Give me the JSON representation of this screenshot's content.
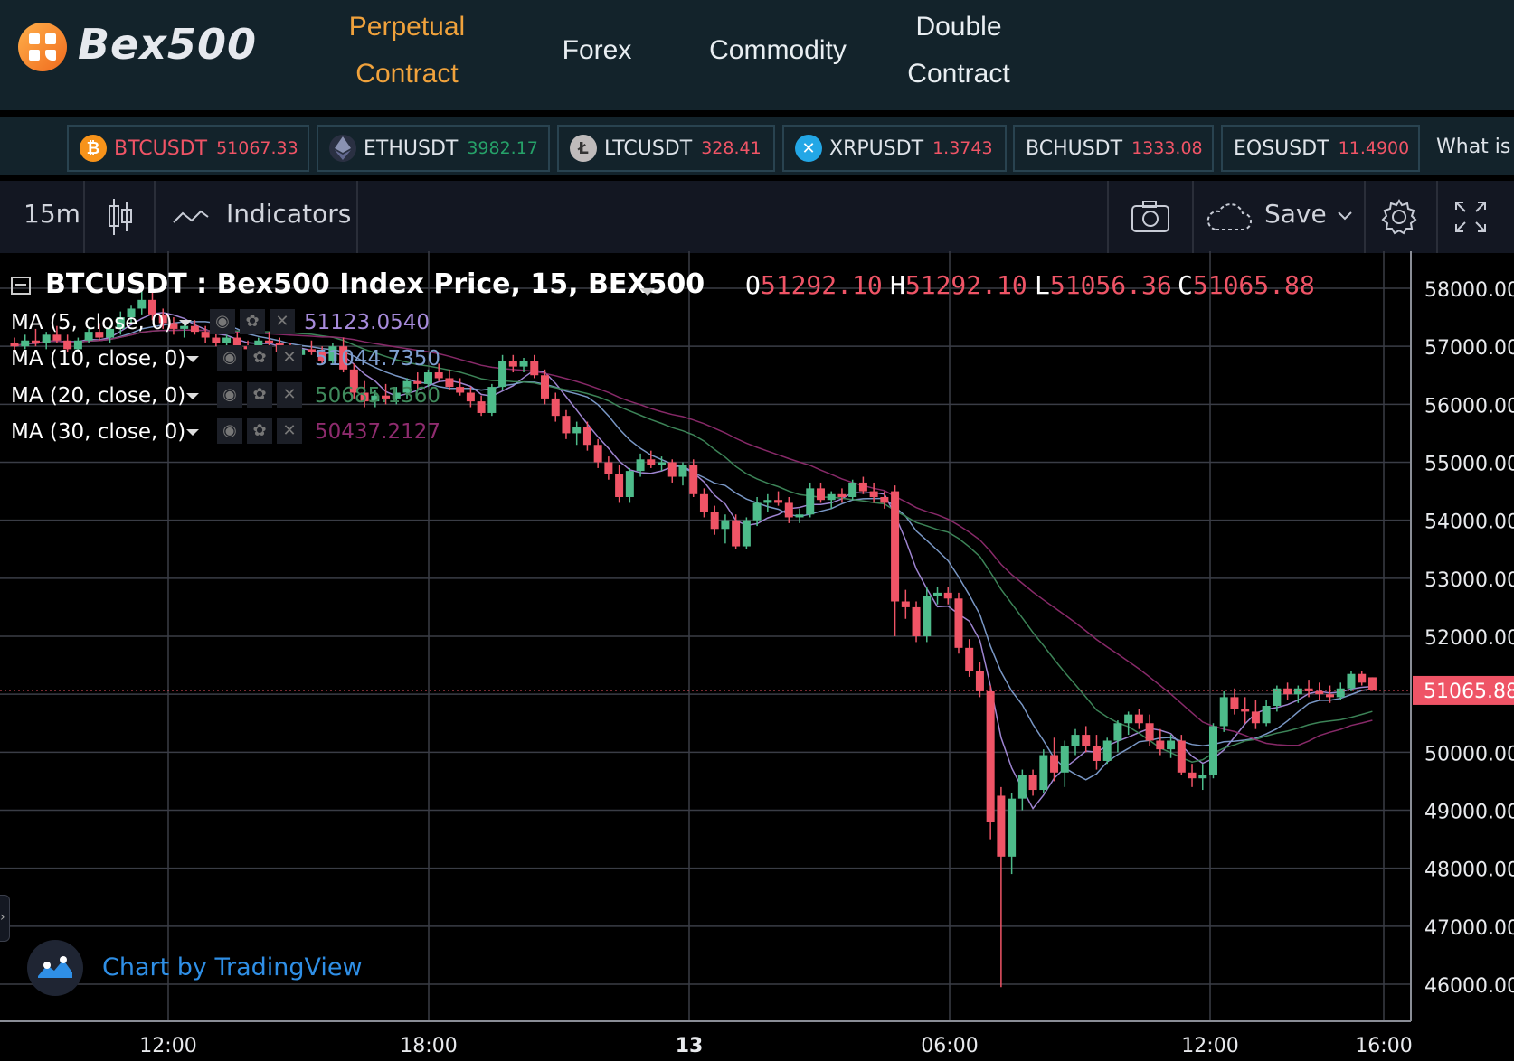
{
  "brand": {
    "name": "Bex500"
  },
  "nav": {
    "items": [
      {
        "line1": "Perpetual",
        "line2": "Contract",
        "active": true
      },
      {
        "line1": "Forex",
        "line2": "",
        "active": false
      },
      {
        "line1": "Commodity",
        "line2": "",
        "active": false
      },
      {
        "line1": "Double",
        "line2": "Contract",
        "active": false
      }
    ]
  },
  "tickers": [
    {
      "symbol": "BTCUSDT",
      "price": "51067.33",
      "icon": "bitcoin-icon",
      "price_color": "#ef5466"
    },
    {
      "symbol": "ETHUSDT",
      "price": "3982.17",
      "icon": "ethereum-icon",
      "price_color": "#26a269"
    },
    {
      "symbol": "LTCUSDT",
      "price": "328.41",
      "icon": "litecoin-icon",
      "price_color": "#ef5466"
    },
    {
      "symbol": "XRPUSDT",
      "price": "1.3743",
      "icon": "ripple-icon",
      "price_color": "#ef5466"
    },
    {
      "symbol": "BCHUSDT",
      "price": "1333.08",
      "icon": "",
      "price_color": "#ef5466"
    },
    {
      "symbol": "EOSUSDT",
      "price": "11.4900",
      "icon": "",
      "price_color": "#ef5466"
    }
  ],
  "ticker_more": "What is",
  "toolbar": {
    "interval": "15m",
    "indicators_label": "Indicators",
    "save_label": "Save"
  },
  "chart_data": {
    "type": "candlestick",
    "title": "BTCUSDT : Bex500 Index Price, 15, BEX500",
    "ohlc": {
      "o": "51292.10",
      "h": "51292.10",
      "l": "51056.36",
      "c": "51065.88"
    },
    "ohlc_labels": [
      "O",
      "H",
      "L",
      "C"
    ],
    "last_price": "51065.88",
    "indicators": [
      {
        "label": "MA (5, close, 0)",
        "value": "51123.0540",
        "color": "#a78bdb"
      },
      {
        "label": "MA (10, close, 0)",
        "value": "51044.7350",
        "color": "#7f9fd0"
      },
      {
        "label": "MA (20, close, 0)",
        "value": "50685.1360",
        "color": "#3f8a5c"
      },
      {
        "label": "MA (30, close, 0)",
        "value": "50437.2127",
        "color": "#8e2b6e"
      }
    ],
    "y_ticks": [
      "58000.00",
      "57000.00",
      "56000.00",
      "55000.00",
      "54000.00",
      "53000.00",
      "52000.00",
      "51000.00",
      "50000.00",
      "49000.00",
      "48000.00",
      "47000.00",
      "46000.00"
    ],
    "x_ticks": [
      "12:00",
      "18:00",
      "13",
      "06:00",
      "12:00",
      "16:00"
    ],
    "ylim": [
      45700,
      58300
    ],
    "candles": [
      {
        "o": 57050,
        "h": 57150,
        "l": 56900,
        "c": 57000
      },
      {
        "o": 57000,
        "h": 57200,
        "l": 56950,
        "c": 57100
      },
      {
        "o": 57100,
        "h": 57300,
        "l": 57000,
        "c": 57050
      },
      {
        "o": 57050,
        "h": 57250,
        "l": 56950,
        "c": 57200
      },
      {
        "o": 57200,
        "h": 57350,
        "l": 57050,
        "c": 57100
      },
      {
        "o": 57100,
        "h": 57200,
        "l": 56900,
        "c": 56950
      },
      {
        "o": 56950,
        "h": 57150,
        "l": 56900,
        "c": 57100
      },
      {
        "o": 57100,
        "h": 57300,
        "l": 57050,
        "c": 57250
      },
      {
        "o": 57250,
        "h": 57400,
        "l": 57100,
        "c": 57150
      },
      {
        "o": 57150,
        "h": 57350,
        "l": 57050,
        "c": 57300
      },
      {
        "o": 57300,
        "h": 57600,
        "l": 57200,
        "c": 57500
      },
      {
        "o": 57500,
        "h": 57700,
        "l": 57400,
        "c": 57650
      },
      {
        "o": 57650,
        "h": 57950,
        "l": 57550,
        "c": 57800
      },
      {
        "o": 57800,
        "h": 57950,
        "l": 57450,
        "c": 57550
      },
      {
        "o": 57550,
        "h": 57650,
        "l": 57300,
        "c": 57400
      },
      {
        "o": 57400,
        "h": 57500,
        "l": 57200,
        "c": 57300
      },
      {
        "o": 57300,
        "h": 57450,
        "l": 57150,
        "c": 57350
      },
      {
        "o": 57350,
        "h": 57450,
        "l": 57200,
        "c": 57250
      },
      {
        "o": 57250,
        "h": 57350,
        "l": 57050,
        "c": 57150
      },
      {
        "o": 57150,
        "h": 57300,
        "l": 57000,
        "c": 57050
      },
      {
        "o": 57050,
        "h": 57200,
        "l": 56950,
        "c": 57150
      },
      {
        "o": 57150,
        "h": 57250,
        "l": 56950,
        "c": 57000
      },
      {
        "o": 57000,
        "h": 57100,
        "l": 56850,
        "c": 56950
      },
      {
        "o": 56950,
        "h": 57150,
        "l": 56900,
        "c": 57100
      },
      {
        "o": 57100,
        "h": 57250,
        "l": 57000,
        "c": 57050
      },
      {
        "o": 57050,
        "h": 57150,
        "l": 56850,
        "c": 56900
      },
      {
        "o": 56900,
        "h": 57050,
        "l": 56800,
        "c": 56850
      },
      {
        "o": 56850,
        "h": 57000,
        "l": 56750,
        "c": 56950
      },
      {
        "o": 56950,
        "h": 57100,
        "l": 56850,
        "c": 56900
      },
      {
        "o": 56900,
        "h": 57000,
        "l": 56700,
        "c": 56750
      },
      {
        "o": 56750,
        "h": 57050,
        "l": 56700,
        "c": 57000
      },
      {
        "o": 57000,
        "h": 57150,
        "l": 56550,
        "c": 56600
      },
      {
        "o": 56600,
        "h": 56700,
        "l": 56100,
        "c": 56200
      },
      {
        "o": 56200,
        "h": 56400,
        "l": 55950,
        "c": 56050
      },
      {
        "o": 56050,
        "h": 56250,
        "l": 55950,
        "c": 56150
      },
      {
        "o": 56150,
        "h": 56350,
        "l": 56000,
        "c": 56100
      },
      {
        "o": 56100,
        "h": 56300,
        "l": 56000,
        "c": 56200
      },
      {
        "o": 56200,
        "h": 56450,
        "l": 56100,
        "c": 56400
      },
      {
        "o": 56400,
        "h": 56550,
        "l": 56250,
        "c": 56350
      },
      {
        "o": 56350,
        "h": 56600,
        "l": 56300,
        "c": 56550
      },
      {
        "o": 56550,
        "h": 56700,
        "l": 56400,
        "c": 56450
      },
      {
        "o": 56450,
        "h": 56600,
        "l": 56250,
        "c": 56300
      },
      {
        "o": 56300,
        "h": 56450,
        "l": 56150,
        "c": 56200
      },
      {
        "o": 56200,
        "h": 56300,
        "l": 55950,
        "c": 56050
      },
      {
        "o": 56050,
        "h": 56150,
        "l": 55800,
        "c": 55850
      },
      {
        "o": 55850,
        "h": 56350,
        "l": 55800,
        "c": 56300
      },
      {
        "o": 56300,
        "h": 56850,
        "l": 56250,
        "c": 56750
      },
      {
        "o": 56750,
        "h": 56850,
        "l": 56550,
        "c": 56650
      },
      {
        "o": 56650,
        "h": 56800,
        "l": 56550,
        "c": 56750
      },
      {
        "o": 56750,
        "h": 56850,
        "l": 56450,
        "c": 56500
      },
      {
        "o": 56500,
        "h": 56600,
        "l": 56000,
        "c": 56100
      },
      {
        "o": 56100,
        "h": 56200,
        "l": 55700,
        "c": 55800
      },
      {
        "o": 55800,
        "h": 55900,
        "l": 55400,
        "c": 55500
      },
      {
        "o": 55500,
        "h": 55700,
        "l": 55300,
        "c": 55600
      },
      {
        "o": 55600,
        "h": 55700,
        "l": 55200,
        "c": 55300
      },
      {
        "o": 55300,
        "h": 55400,
        "l": 54900,
        "c": 55000
      },
      {
        "o": 55000,
        "h": 55100,
        "l": 54700,
        "c": 54800
      },
      {
        "o": 54800,
        "h": 54950,
        "l": 54300,
        "c": 54400
      },
      {
        "o": 54400,
        "h": 54900,
        "l": 54300,
        "c": 54850
      },
      {
        "o": 54850,
        "h": 55150,
        "l": 54750,
        "c": 55050
      },
      {
        "o": 55050,
        "h": 55200,
        "l": 54900,
        "c": 54950
      },
      {
        "o": 54950,
        "h": 55100,
        "l": 54850,
        "c": 55000
      },
      {
        "o": 55000,
        "h": 55050,
        "l": 54650,
        "c": 54750
      },
      {
        "o": 54750,
        "h": 55000,
        "l": 54600,
        "c": 54950
      },
      {
        "o": 54950,
        "h": 55050,
        "l": 54400,
        "c": 54450
      },
      {
        "o": 54450,
        "h": 54550,
        "l": 54050,
        "c": 54150
      },
      {
        "o": 54150,
        "h": 54250,
        "l": 53750,
        "c": 53850
      },
      {
        "o": 53850,
        "h": 54100,
        "l": 53600,
        "c": 54000
      },
      {
        "o": 54000,
        "h": 54100,
        "l": 53500,
        "c": 53550
      },
      {
        "o": 53550,
        "h": 54050,
        "l": 53500,
        "c": 54000
      },
      {
        "o": 54000,
        "h": 54400,
        "l": 53900,
        "c": 54300
      },
      {
        "o": 54300,
        "h": 54450,
        "l": 54150,
        "c": 54350
      },
      {
        "o": 54350,
        "h": 54500,
        "l": 54250,
        "c": 54300
      },
      {
        "o": 54300,
        "h": 54400,
        "l": 53950,
        "c": 54050
      },
      {
        "o": 54050,
        "h": 54200,
        "l": 53950,
        "c": 54100
      },
      {
        "o": 54100,
        "h": 54650,
        "l": 54050,
        "c": 54550
      },
      {
        "o": 54550,
        "h": 54650,
        "l": 54300,
        "c": 54350
      },
      {
        "o": 54350,
        "h": 54500,
        "l": 54200,
        "c": 54450
      },
      {
        "o": 54450,
        "h": 54550,
        "l": 54300,
        "c": 54400
      },
      {
        "o": 54400,
        "h": 54700,
        "l": 54350,
        "c": 54650
      },
      {
        "o": 54650,
        "h": 54750,
        "l": 54450,
        "c": 54500
      },
      {
        "o": 54500,
        "h": 54650,
        "l": 54300,
        "c": 54400
      },
      {
        "o": 54400,
        "h": 54500,
        "l": 54200,
        "c": 54300
      },
      {
        "o": 54500,
        "h": 54600,
        "l": 52000,
        "c": 52600
      },
      {
        "o": 52600,
        "h": 52800,
        "l": 52300,
        "c": 52500
      },
      {
        "o": 52500,
        "h": 52600,
        "l": 51900,
        "c": 52000
      },
      {
        "o": 52000,
        "h": 52850,
        "l": 51900,
        "c": 52700
      },
      {
        "o": 52700,
        "h": 52850,
        "l": 52550,
        "c": 52750
      },
      {
        "o": 52750,
        "h": 52850,
        "l": 52550,
        "c": 52650
      },
      {
        "o": 52650,
        "h": 52750,
        "l": 51700,
        "c": 51800
      },
      {
        "o": 51800,
        "h": 51950,
        "l": 51300,
        "c": 51400
      },
      {
        "o": 51400,
        "h": 51550,
        "l": 50950,
        "c": 51050
      },
      {
        "o": 51050,
        "h": 51150,
        "l": 48500,
        "c": 48800
      },
      {
        "o": 49250,
        "h": 49400,
        "l": 45950,
        "c": 48200
      },
      {
        "o": 48200,
        "h": 49300,
        "l": 47900,
        "c": 49200
      },
      {
        "o": 49200,
        "h": 49700,
        "l": 49000,
        "c": 49600
      },
      {
        "o": 49600,
        "h": 49700,
        "l": 49250,
        "c": 49350
      },
      {
        "o": 49350,
        "h": 50050,
        "l": 49300,
        "c": 49950
      },
      {
        "o": 49950,
        "h": 50250,
        "l": 49500,
        "c": 49650
      },
      {
        "o": 49650,
        "h": 50200,
        "l": 49400,
        "c": 50100
      },
      {
        "o": 50100,
        "h": 50400,
        "l": 49950,
        "c": 50300
      },
      {
        "o": 50300,
        "h": 50450,
        "l": 50000,
        "c": 50100
      },
      {
        "o": 50100,
        "h": 50300,
        "l": 49700,
        "c": 49850
      },
      {
        "o": 49850,
        "h": 50250,
        "l": 49800,
        "c": 50200
      },
      {
        "o": 50200,
        "h": 50550,
        "l": 50000,
        "c": 50500
      },
      {
        "o": 50500,
        "h": 50700,
        "l": 50300,
        "c": 50650
      },
      {
        "o": 50650,
        "h": 50750,
        "l": 50400,
        "c": 50500
      },
      {
        "o": 50500,
        "h": 50650,
        "l": 50100,
        "c": 50200
      },
      {
        "o": 50200,
        "h": 50400,
        "l": 49950,
        "c": 50050
      },
      {
        "o": 50050,
        "h": 50300,
        "l": 49900,
        "c": 50200
      },
      {
        "o": 50200,
        "h": 50300,
        "l": 49600,
        "c": 49650
      },
      {
        "o": 49650,
        "h": 49800,
        "l": 49400,
        "c": 49550
      },
      {
        "o": 49550,
        "h": 49800,
        "l": 49350,
        "c": 49600
      },
      {
        "o": 49600,
        "h": 50500,
        "l": 49550,
        "c": 50450
      },
      {
        "o": 50450,
        "h": 51050,
        "l": 50350,
        "c": 50950
      },
      {
        "o": 50950,
        "h": 51100,
        "l": 50650,
        "c": 50750
      },
      {
        "o": 50750,
        "h": 50950,
        "l": 50500,
        "c": 50700
      },
      {
        "o": 50700,
        "h": 50900,
        "l": 50400,
        "c": 50500
      },
      {
        "o": 50500,
        "h": 50900,
        "l": 50450,
        "c": 50800
      },
      {
        "o": 50800,
        "h": 51150,
        "l": 50700,
        "c": 51100
      },
      {
        "o": 51100,
        "h": 51200,
        "l": 50900,
        "c": 51000
      },
      {
        "o": 51000,
        "h": 51150,
        "l": 50850,
        "c": 51100
      },
      {
        "o": 51100,
        "h": 51250,
        "l": 50950,
        "c": 51050
      },
      {
        "o": 51050,
        "h": 51200,
        "l": 50900,
        "c": 51000
      },
      {
        "o": 51000,
        "h": 51150,
        "l": 50850,
        "c": 50950
      },
      {
        "o": 50950,
        "h": 51200,
        "l": 50900,
        "c": 51100
      },
      {
        "o": 51100,
        "h": 51400,
        "l": 51050,
        "c": 51350
      },
      {
        "o": 51350,
        "h": 51400,
        "l": 51150,
        "c": 51200
      },
      {
        "o": 51292,
        "h": 51292,
        "l": 51056,
        "c": 51066
      }
    ]
  }
}
